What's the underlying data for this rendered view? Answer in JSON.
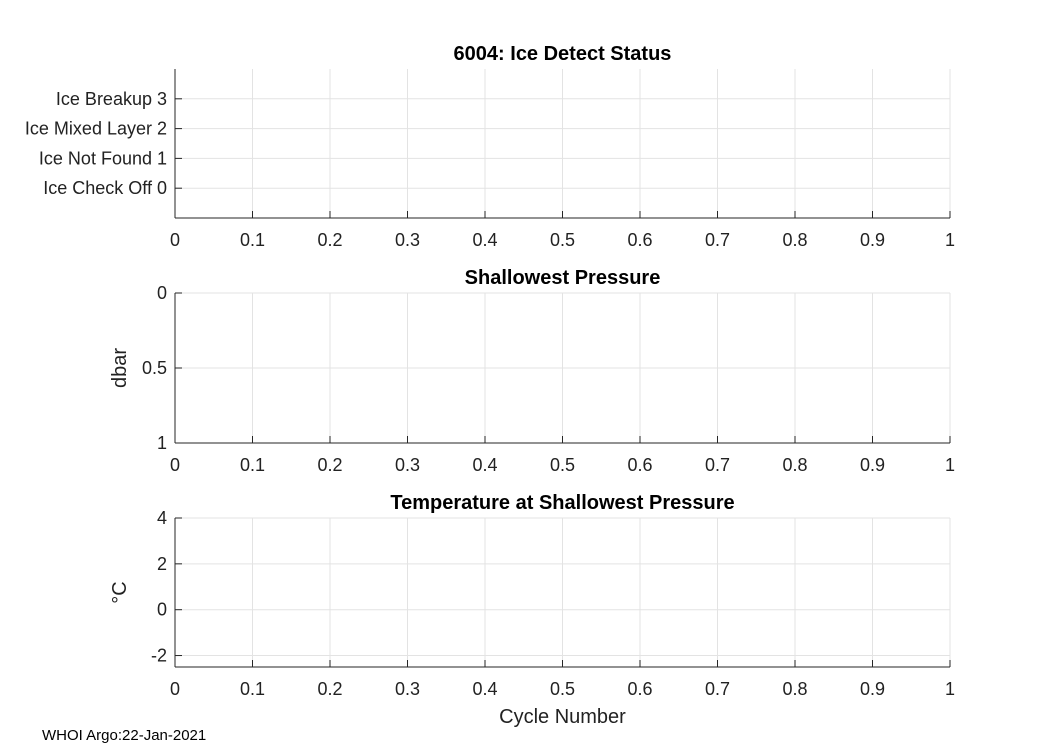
{
  "chart_data": [
    {
      "type": "line",
      "title": "6004: Ice Detect Status",
      "xlabel": "",
      "ylabel": "",
      "xlim": [
        0,
        1
      ],
      "ylim": [
        -1,
        4
      ],
      "xticks": [
        0,
        0.1,
        0.2,
        0.3,
        0.4,
        0.5,
        0.6,
        0.7,
        0.8,
        0.9,
        1
      ],
      "xtick_labels": [
        "0",
        "0.1",
        "0.2",
        "0.3",
        "0.4",
        "0.5",
        "0.6",
        "0.7",
        "0.8",
        "0.9",
        "1"
      ],
      "yticks": [
        0,
        1,
        2,
        3
      ],
      "ytick_labels": [
        "Ice Check Off 0",
        "Ice Not Found 1",
        "Ice Mixed Layer 2",
        "Ice Breakup 3"
      ],
      "y_reversed": false,
      "grid": true,
      "series": []
    },
    {
      "type": "line",
      "title": "Shallowest Pressure",
      "xlabel": "",
      "ylabel": "dbar",
      "xlim": [
        0,
        1
      ],
      "ylim": [
        0,
        1
      ],
      "xticks": [
        0,
        0.1,
        0.2,
        0.3,
        0.4,
        0.5,
        0.6,
        0.7,
        0.8,
        0.9,
        1
      ],
      "xtick_labels": [
        "0",
        "0.1",
        "0.2",
        "0.3",
        "0.4",
        "0.5",
        "0.6",
        "0.7",
        "0.8",
        "0.9",
        "1"
      ],
      "yticks": [
        0,
        0.5,
        1
      ],
      "ytick_labels": [
        "0",
        "0.5",
        "1"
      ],
      "y_reversed": true,
      "grid": true,
      "series": []
    },
    {
      "type": "line",
      "title": "Temperature at Shallowest Pressure",
      "xlabel": "Cycle Number",
      "ylabel": "°C",
      "xlim": [
        0,
        1
      ],
      "ylim": [
        -2.5,
        4
      ],
      "xticks": [
        0,
        0.1,
        0.2,
        0.3,
        0.4,
        0.5,
        0.6,
        0.7,
        0.8,
        0.9,
        1
      ],
      "xtick_labels": [
        "0",
        "0.1",
        "0.2",
        "0.3",
        "0.4",
        "0.5",
        "0.6",
        "0.7",
        "0.8",
        "0.9",
        "1"
      ],
      "yticks": [
        -2,
        0,
        2,
        4
      ],
      "ytick_labels": [
        "-2",
        "0",
        "2",
        "4"
      ],
      "y_reversed": false,
      "grid": true,
      "series": []
    }
  ],
  "footer": {
    "text": "WHOI Argo:22-Jan-2021"
  }
}
